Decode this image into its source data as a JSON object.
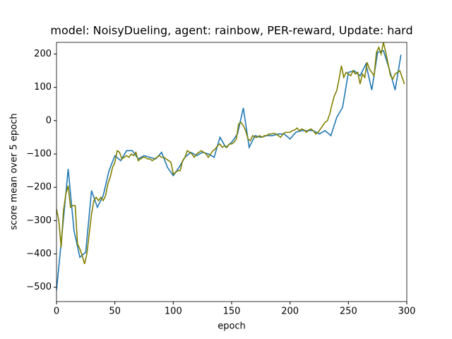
{
  "chart_data": {
    "type": "line",
    "title": "model: NoisyDueling, agent: rainbow, PER-reward, Update: hard",
    "xlabel": "epoch",
    "ylabel": "score mean over 5 epoch",
    "xlim": [
      0,
      300
    ],
    "ylim": [
      -543,
      235
    ],
    "xticks": [
      0,
      50,
      100,
      150,
      200,
      250,
      300
    ],
    "yticks": [
      {
        "value": -500,
        "label": "−500"
      },
      {
        "value": -400,
        "label": "−400"
      },
      {
        "value": -300,
        "label": "−300"
      },
      {
        "value": -200,
        "label": "−200"
      },
      {
        "value": -100,
        "label": "−100"
      },
      0,
      100,
      200
    ],
    "series": [
      {
        "color": "#1f77b4",
        "x": [
          0,
          5,
          10,
          15,
          20,
          25,
          30,
          35,
          40,
          45,
          50,
          55,
          60,
          65,
          70,
          75,
          80,
          85,
          90,
          95,
          100,
          105,
          110,
          115,
          120,
          125,
          130,
          135,
          140,
          145,
          150,
          155,
          160,
          165,
          170,
          175,
          180,
          185,
          190,
          195,
          200,
          205,
          210,
          215,
          220,
          225,
          230,
          235,
          240,
          245,
          250,
          255,
          260,
          265,
          270,
          275,
          280,
          285,
          290,
          295
        ],
        "values": [
          -510,
          -330,
          -145,
          -330,
          -410,
          -395,
          -210,
          -260,
          -225,
          -150,
          -105,
          -120,
          -90,
          -90,
          -115,
          -105,
          -110,
          -115,
          -95,
          -140,
          -165,
          -140,
          -110,
          -95,
          -105,
          -95,
          -100,
          -110,
          -50,
          -80,
          -65,
          -40,
          38,
          -80,
          -45,
          -50,
          -45,
          -45,
          -40,
          -40,
          -55,
          -35,
          -30,
          -30,
          -30,
          -40,
          -30,
          -45,
          10,
          40,
          145,
          150,
          135,
          170,
          92,
          205,
          210,
          155,
          92,
          198
        ]
      },
      {
        "color": "#808000",
        "x": [
          0,
          2,
          4,
          6,
          8,
          10,
          12,
          14,
          16,
          18,
          20,
          22,
          24,
          26,
          28,
          30,
          32,
          34,
          36,
          38,
          40,
          42,
          44,
          46,
          48,
          50,
          52,
          54,
          56,
          58,
          60,
          62,
          64,
          66,
          68,
          70,
          72,
          74,
          76,
          78,
          80,
          82,
          84,
          86,
          88,
          90,
          92,
          94,
          96,
          98,
          100,
          102,
          104,
          106,
          108,
          110,
          112,
          114,
          116,
          118,
          120,
          122,
          124,
          126,
          128,
          130,
          132,
          134,
          136,
          138,
          140,
          142,
          144,
          146,
          148,
          150,
          152,
          154,
          156,
          158,
          160,
          162,
          164,
          166,
          168,
          170,
          172,
          174,
          176,
          178,
          180,
          182,
          184,
          186,
          188,
          190,
          192,
          194,
          196,
          198,
          200,
          202,
          204,
          206,
          208,
          210,
          212,
          214,
          216,
          218,
          220,
          222,
          224,
          226,
          228,
          230,
          232,
          234,
          236,
          238,
          240,
          242,
          244,
          246,
          248,
          250,
          252,
          254,
          256,
          258,
          260,
          262,
          264,
          266,
          268,
          270,
          272,
          274,
          276,
          278,
          280,
          282,
          284,
          286,
          288,
          290,
          292,
          294,
          296,
          298
        ],
        "values": [
          -265,
          -300,
          -380,
          -270,
          -220,
          -195,
          -260,
          -255,
          -255,
          -370,
          -385,
          -405,
          -430,
          -400,
          -340,
          -280,
          -240,
          -230,
          -240,
          -230,
          -240,
          -225,
          -190,
          -170,
          -140,
          -125,
          -90,
          -95,
          -115,
          -110,
          -105,
          -110,
          -100,
          -105,
          -95,
          -120,
          -115,
          -110,
          -110,
          -115,
          -115,
          -120,
          -115,
          -110,
          -105,
          -110,
          -110,
          -115,
          -120,
          -125,
          -160,
          -155,
          -150,
          -150,
          -120,
          -110,
          -90,
          -95,
          -100,
          -110,
          -100,
          -95,
          -90,
          -95,
          -100,
          -110,
          -100,
          -90,
          -85,
          -75,
          -70,
          -80,
          -75,
          -80,
          -70,
          -70,
          -65,
          -55,
          -10,
          -5,
          -15,
          -30,
          -55,
          -60,
          -45,
          -50,
          -50,
          -45,
          -50,
          -45,
          -45,
          -40,
          -40,
          -38,
          -40,
          -45,
          -50,
          -40,
          -35,
          -35,
          -35,
          -30,
          -28,
          -22,
          -30,
          -25,
          -28,
          -35,
          -28,
          -25,
          -30,
          -40,
          -35,
          -25,
          -15,
          -5,
          0,
          20,
          50,
          75,
          90,
          125,
          165,
          130,
          145,
          140,
          135,
          150,
          140,
          145,
          110,
          140,
          130,
          175,
          155,
          145,
          135,
          205,
          220,
          200,
          235,
          205,
          170,
          135,
          125,
          140,
          145,
          150,
          130,
          110
        ]
      }
    ]
  }
}
